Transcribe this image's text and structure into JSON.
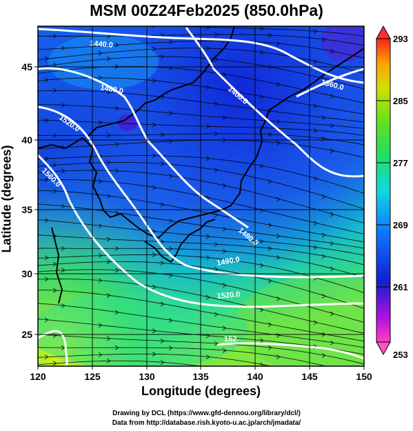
{
  "title": "MSM 00Z24Feb2025 (850.0hPa)",
  "axes": {
    "xlabel": "Longitude (degrees)",
    "ylabel": "Latitude  (degrees)",
    "x_ticks": [
      "120",
      "125",
      "130",
      "135",
      "140",
      "145",
      "150"
    ],
    "y_ticks": [
      "45",
      "40",
      "35",
      "30",
      "25"
    ]
  },
  "colorbar": {
    "labels": [
      "293",
      "285",
      "277",
      "269",
      "261",
      "253"
    ],
    "colors": [
      "#ff2020",
      "#ffa000",
      "#c8e000",
      "#20e020",
      "#10e0d0",
      "#10a0ff",
      "#1030e0",
      "#7010e0",
      "#e010c0"
    ]
  },
  "contour_labels": [
    "1440.0",
    "1480.0",
    "1400.0",
    "1360.0",
    "1520.0",
    "1560.0",
    "1480.0",
    "1490.0",
    "1520.0",
    "152"
  ],
  "credits": [
    "Drawing by DCL (https://www.gfd-dennou.org/library/dcl/)",
    "Data from http://database.rish.kyoto-u.ac.jp/arch/jmadata/"
  ]
}
